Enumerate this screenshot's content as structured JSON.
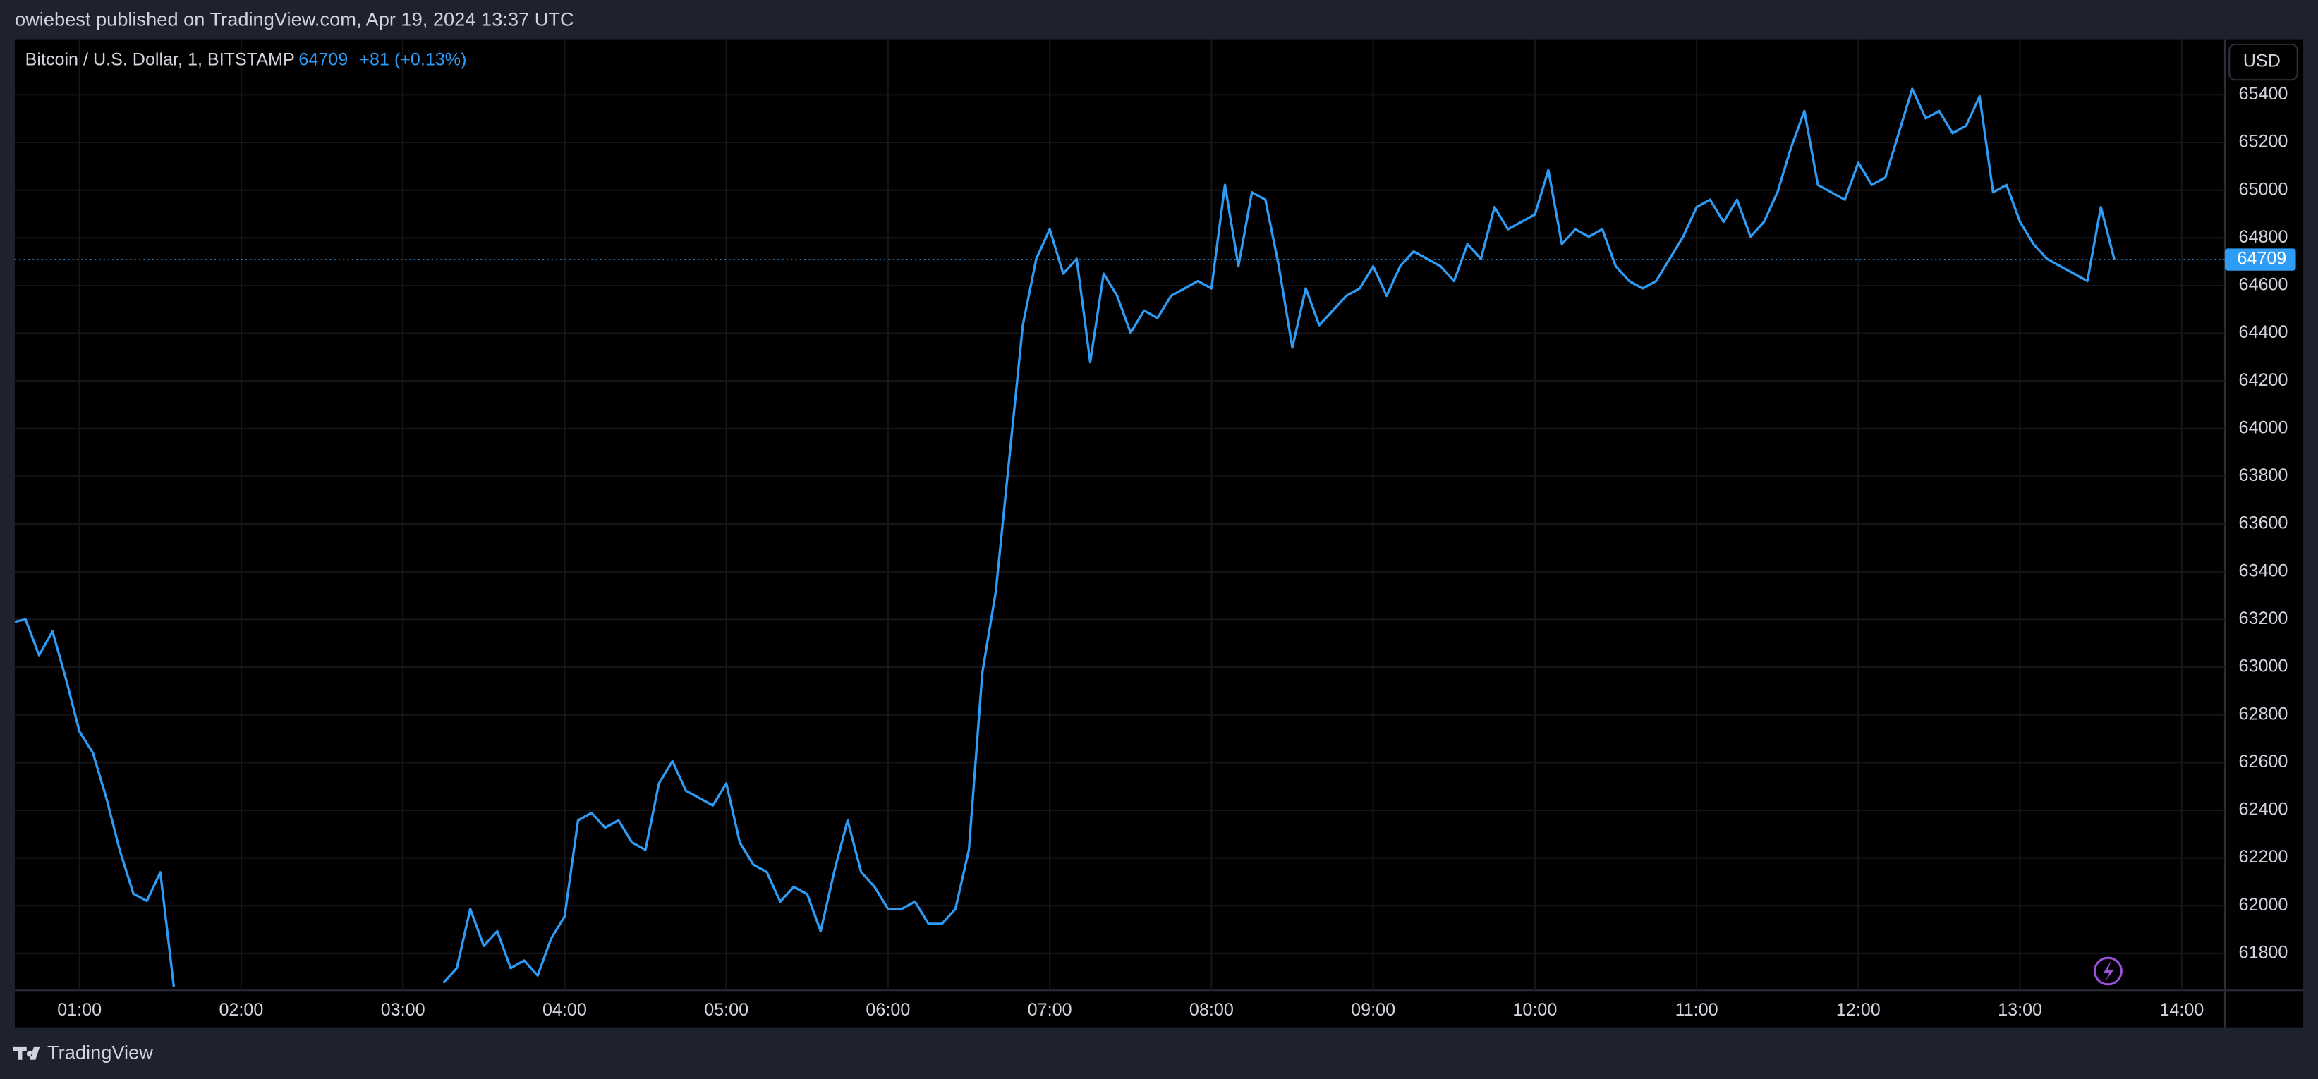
{
  "header": {
    "publisher": "owiebest published on TradingView.com, Apr 19, 2024 13:37 UTC"
  },
  "footer": {
    "brand": "TradingView"
  },
  "chart_data": {
    "type": "line",
    "title": "Bitcoin / U.S. Dollar, 1, BITSTAMP",
    "change": "+81 (+0.13%)",
    "currency": "USD",
    "x": [
      "00:36",
      "00:40",
      "00:45",
      "00:50",
      "00:55",
      "01:00",
      "01:05",
      "01:10",
      "01:15",
      "01:20",
      "01:25",
      "01:30",
      "01:35",
      "01:40",
      "01:45",
      "01:50",
      "01:55",
      "02:00",
      "02:05",
      "02:10",
      "02:15",
      "02:20",
      "02:25",
      "02:30",
      "02:35",
      "02:40",
      "02:45",
      "02:50",
      "02:55",
      "03:00",
      "03:05",
      "03:10",
      "03:15",
      "03:20",
      "03:25",
      "03:30",
      "03:35",
      "03:40",
      "03:45",
      "03:50",
      "03:55",
      "04:00",
      "04:05",
      "04:10",
      "04:15",
      "04:20",
      "04:25",
      "04:30",
      "04:35",
      "04:40",
      "04:45",
      "04:50",
      "04:55",
      "05:00",
      "05:05",
      "05:10",
      "05:15",
      "05:20",
      "05:25",
      "05:30",
      "05:35",
      "05:40",
      "05:45",
      "05:50",
      "05:55",
      "06:00",
      "06:05",
      "06:10",
      "06:15",
      "06:20",
      "06:25",
      "06:30",
      "06:35",
      "06:40",
      "06:45",
      "06:50",
      "06:55",
      "07:00",
      "07:05",
      "07:10",
      "07:15",
      "07:20",
      "07:25",
      "07:30",
      "07:35",
      "07:40",
      "07:45",
      "07:50",
      "07:55",
      "08:00",
      "08:05",
      "08:10",
      "08:15",
      "08:20",
      "08:25",
      "08:30",
      "08:35",
      "08:40",
      "08:45",
      "08:50",
      "08:55",
      "09:00",
      "09:05",
      "09:10",
      "09:15",
      "09:20",
      "09:25",
      "09:30",
      "09:35",
      "09:40",
      "09:45",
      "09:50",
      "09:55",
      "10:00",
      "10:05",
      "10:10",
      "10:15",
      "10:20",
      "10:25",
      "10:30",
      "10:35",
      "10:40",
      "10:45",
      "10:50",
      "10:55",
      "11:00",
      "11:05",
      "11:10",
      "11:15",
      "11:20",
      "11:25",
      "11:30",
      "11:35",
      "11:40",
      "11:45",
      "11:50",
      "11:55",
      "12:00",
      "12:05",
      "12:10",
      "12:15",
      "12:20",
      "12:25",
      "12:30",
      "12:35",
      "12:40",
      "12:45",
      "12:50",
      "12:55",
      "13:00",
      "13:05",
      "13:10",
      "13:15",
      "13:20",
      "13:25",
      "13:30",
      "13:35"
    ],
    "series": [
      {
        "name": "Bitcoin / U.S. Dollar",
        "color": "#2e9bf5",
        "values": [
          63190,
          63200,
          63050,
          63150,
          62950,
          62730,
          62640,
          62450,
          62230,
          62050,
          62020,
          62140,
          61660,
          null,
          null,
          null,
          null,
          null,
          null,
          null,
          null,
          null,
          null,
          null,
          null,
          null,
          null,
          null,
          null,
          null,
          null,
          null,
          61676,
          61738,
          61986,
          61831,
          61893,
          61738,
          61770,
          61707,
          61862,
          61955,
          62358,
          62389,
          62327,
          62358,
          62265,
          62234,
          62513,
          62606,
          62482,
          62451,
          62420,
          62513,
          62265,
          62172,
          62141,
          62017,
          62079,
          62048,
          61893,
          62141,
          62358,
          62141,
          62079,
          61986,
          61986,
          62017,
          61924,
          61924,
          61986,
          62234,
          62978,
          63318,
          63876,
          64434,
          64712,
          64836,
          64650,
          64712,
          64279,
          64650,
          64557,
          64402,
          64495,
          64464,
          64557,
          64588,
          64619,
          64588,
          65022,
          64681,
          64991,
          64960,
          64681,
          64340,
          64588,
          64434,
          64495,
          64557,
          64588,
          64681,
          64557,
          64681,
          64743,
          64712,
          64681,
          64619,
          64774,
          64712,
          64929,
          64836,
          64867,
          64898,
          65084,
          64774,
          64836,
          64805,
          64836,
          64681,
          64619,
          64588,
          64619,
          64712,
          64805,
          64929,
          64960,
          64867,
          64960,
          64805,
          64867,
          64991,
          65177,
          65332,
          65022,
          64991,
          64960,
          65115,
          65022,
          65053,
          65239,
          65425,
          65301,
          65332,
          65239,
          65270,
          65394,
          64991,
          65022,
          64867,
          64774,
          64712,
          64681,
          64650,
          64619,
          64929,
          64709
        ]
      }
    ],
    "xlim": [
      "00:36",
      "14:16"
    ],
    "xticks": [
      "01:00",
      "02:00",
      "03:00",
      "04:00",
      "05:00",
      "06:00",
      "07:00",
      "08:00",
      "09:00",
      "10:00",
      "11:00",
      "12:00",
      "13:00",
      "14:00"
    ],
    "ylim": [
      61645,
      65630
    ],
    "yticks": [
      61800,
      62000,
      62200,
      62400,
      62600,
      62800,
      63000,
      63200,
      63400,
      63600,
      63800,
      64000,
      64200,
      64400,
      64600,
      64800,
      65000,
      65200,
      65400
    ],
    "grid": true
  }
}
